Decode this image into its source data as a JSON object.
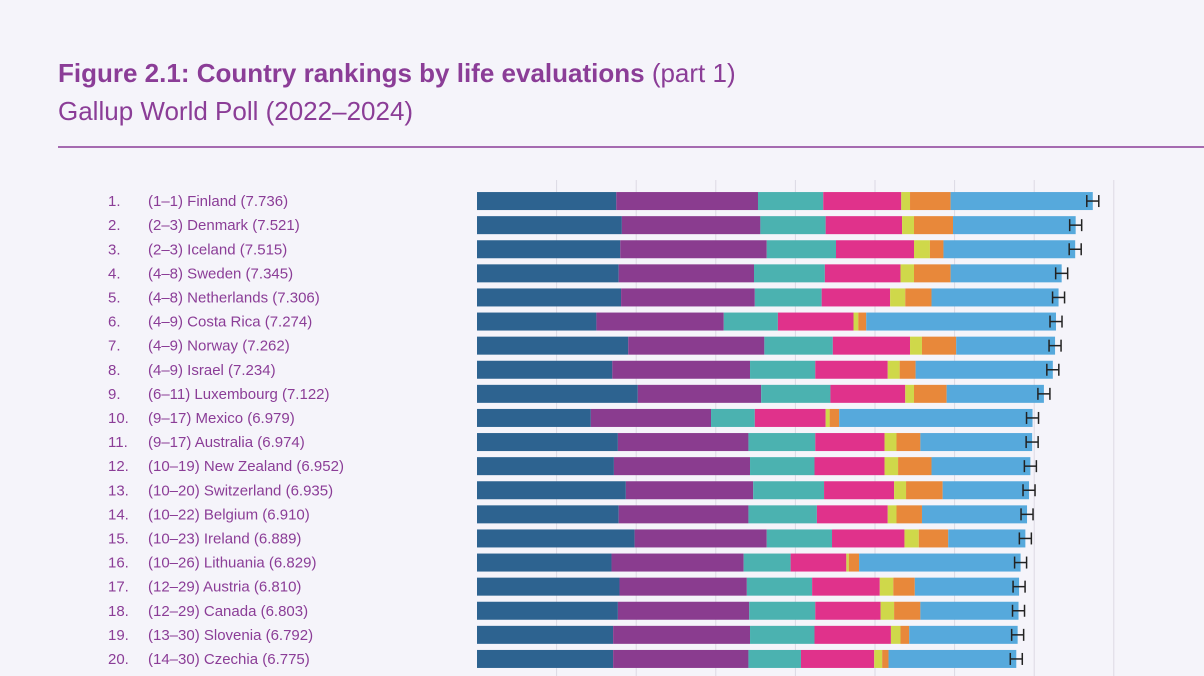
{
  "header": {
    "title_bold": "Figure 2.1: Country rankings by life evaluations",
    "title_part": "(part 1)",
    "subtitle": "Gallup World Poll (2022–2024)"
  },
  "colors": {
    "dystopia_residual": "#56a9dc",
    "segments": [
      "#2d6390",
      "#8a3c8f",
      "#4bb2b0",
      "#e0328b",
      "#cfd84a",
      "#e8883a"
    ],
    "text": "#8b3d97"
  },
  "chart_data": {
    "type": "bar",
    "orientation": "horizontal",
    "stacked": true,
    "error_bars": true,
    "xlim": [
      0,
      8
    ],
    "rows": [
      {
        "rank": "1.",
        "range": "(1–1)",
        "country": "Finland",
        "score": "7.736",
        "value": 7.736,
        "parts": [
          1.75,
          1.78,
          0.82,
          0.98,
          0.11,
          0.51
        ]
      },
      {
        "rank": "2.",
        "range": "(2–3)",
        "country": "Denmark",
        "score": "7.521",
        "value": 7.521,
        "parts": [
          1.82,
          1.74,
          0.82,
          0.96,
          0.15,
          0.49
        ]
      },
      {
        "rank": "3.",
        "range": "(2–3)",
        "country": "Iceland",
        "score": "7.515",
        "value": 7.515,
        "parts": [
          1.8,
          1.84,
          0.87,
          0.98,
          0.2,
          0.17
        ]
      },
      {
        "rank": "4.",
        "range": "(4–8)",
        "country": "Sweden",
        "score": "7.345",
        "value": 7.345,
        "parts": [
          1.78,
          1.7,
          0.89,
          0.95,
          0.17,
          0.46
        ]
      },
      {
        "rank": "5.",
        "range": "(4–8)",
        "country": "Netherlands",
        "score": "7.306",
        "value": 7.306,
        "parts": [
          1.81,
          1.68,
          0.84,
          0.86,
          0.19,
          0.33
        ]
      },
      {
        "rank": "6.",
        "range": "(4–9)",
        "country": "Costa Rica",
        "score": "7.274",
        "value": 7.274,
        "parts": [
          1.5,
          1.6,
          0.68,
          0.95,
          0.06,
          0.1
        ]
      },
      {
        "rank": "7.",
        "range": "(4–9)",
        "country": "Norway",
        "score": "7.262",
        "value": 7.262,
        "parts": [
          1.9,
          1.71,
          0.86,
          0.97,
          0.15,
          0.43
        ]
      },
      {
        "rank": "8.",
        "range": "(4–9)",
        "country": "Israel",
        "score": "7.234",
        "value": 7.234,
        "parts": [
          1.7,
          1.73,
          0.82,
          0.91,
          0.15,
          0.2
        ]
      },
      {
        "rank": "9.",
        "range": "(6–11)",
        "country": "Luxembourg",
        "score": "7.122",
        "value": 7.122,
        "parts": [
          2.02,
          1.55,
          0.87,
          0.94,
          0.11,
          0.41
        ]
      },
      {
        "rank": "10.",
        "range": "(9–17)",
        "country": "Mexico",
        "score": "6.979",
        "value": 6.979,
        "parts": [
          1.43,
          1.51,
          0.55,
          0.89,
          0.05,
          0.12
        ]
      },
      {
        "rank": "11.",
        "range": "(9–17)",
        "country": "Australia",
        "score": "6.974",
        "value": 6.974,
        "parts": [
          1.77,
          1.64,
          0.84,
          0.87,
          0.15,
          0.3
        ]
      },
      {
        "rank": "12.",
        "range": "(10–19)",
        "country": "New Zealand",
        "score": "6.952",
        "value": 6.952,
        "parts": [
          1.72,
          1.71,
          0.81,
          0.88,
          0.17,
          0.42
        ]
      },
      {
        "rank": "13.",
        "range": "(10–20)",
        "country": "Switzerland",
        "score": "6.935",
        "value": 6.935,
        "parts": [
          1.87,
          1.6,
          0.89,
          0.88,
          0.15,
          0.46
        ]
      },
      {
        "rank": "14.",
        "range": "(10–22)",
        "country": "Belgium",
        "score": "6.910",
        "value": 6.91,
        "parts": [
          1.78,
          1.63,
          0.86,
          0.89,
          0.11,
          0.32
        ]
      },
      {
        "rank": "15.",
        "range": "(10–23)",
        "country": "Ireland",
        "score": "6.889",
        "value": 6.889,
        "parts": [
          1.98,
          1.66,
          0.82,
          0.91,
          0.18,
          0.37
        ]
      },
      {
        "rank": "16.",
        "range": "(10–26)",
        "country": "Lithuania",
        "score": "6.829",
        "value": 6.829,
        "parts": [
          1.69,
          1.66,
          0.59,
          0.7,
          0.03,
          0.13
        ]
      },
      {
        "rank": "17.",
        "range": "(12–29)",
        "country": "Austria",
        "score": "6.810",
        "value": 6.81,
        "parts": [
          1.79,
          1.6,
          0.82,
          0.85,
          0.17,
          0.27
        ]
      },
      {
        "rank": "18.",
        "range": "(12–29)",
        "country": "Canada",
        "score": "6.803",
        "value": 6.803,
        "parts": [
          1.77,
          1.65,
          0.83,
          0.82,
          0.17,
          0.33
        ]
      },
      {
        "rank": "19.",
        "range": "(13–30)",
        "country": "Slovenia",
        "score": "6.792",
        "value": 6.792,
        "parts": [
          1.71,
          1.72,
          0.81,
          0.96,
          0.12,
          0.11
        ]
      },
      {
        "rank": "20.",
        "range": "(14–30)",
        "country": "Czechia",
        "score": "6.775",
        "value": 6.775,
        "parts": [
          1.71,
          1.7,
          0.66,
          0.92,
          0.1,
          0.08
        ]
      }
    ]
  }
}
